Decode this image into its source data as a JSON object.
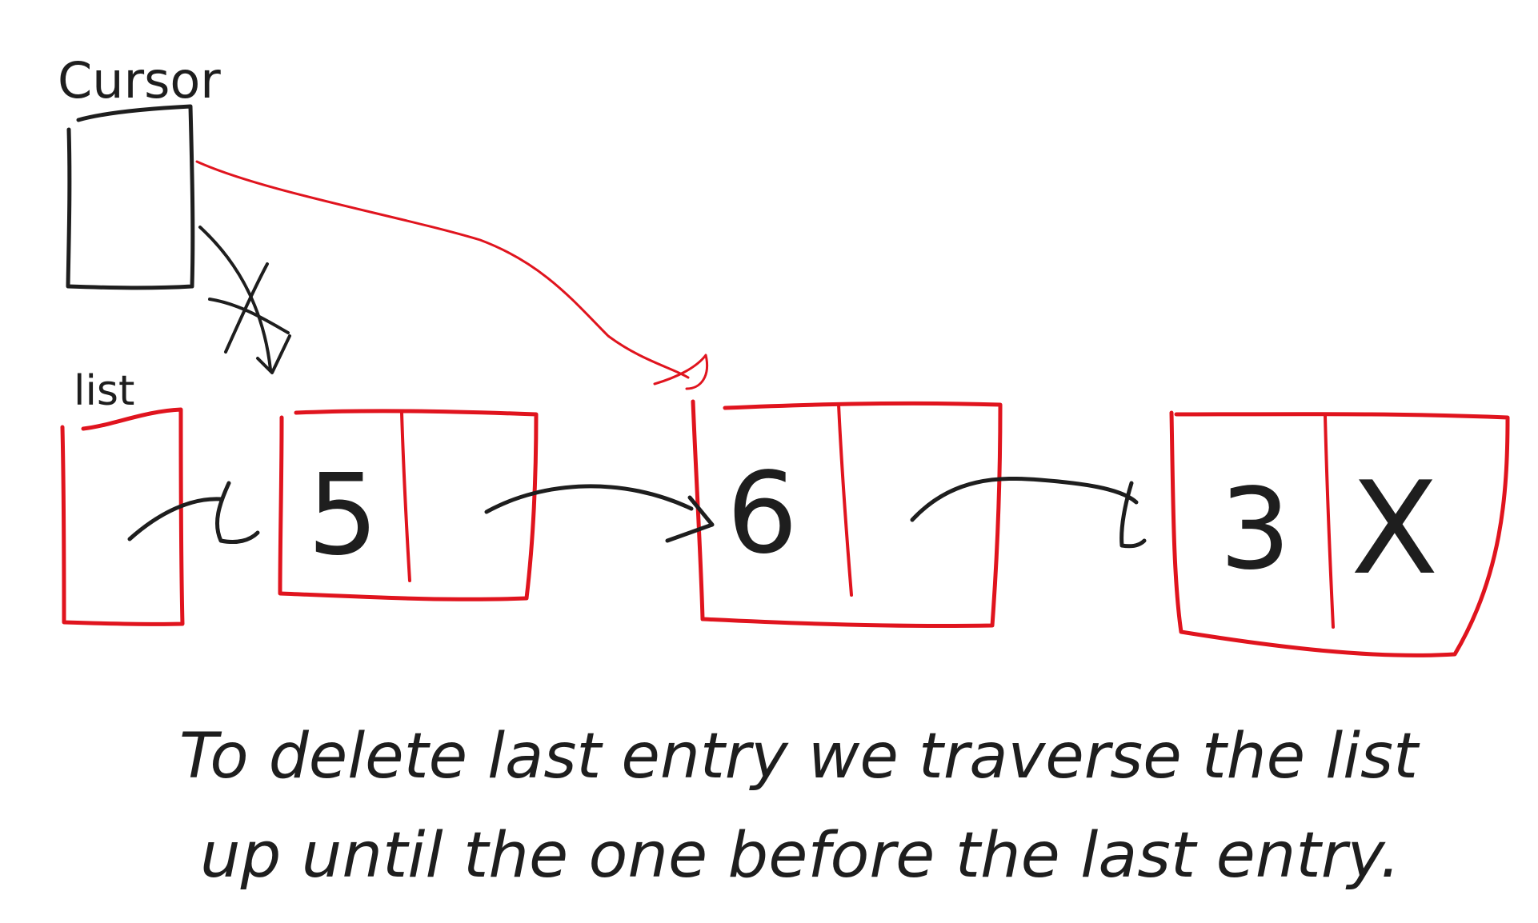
{
  "labels": {
    "cursor": "Cursor",
    "list": "list"
  },
  "nodes": [
    {
      "value": "5",
      "next": ""
    },
    {
      "value": "6",
      "next": ""
    },
    {
      "value": "3",
      "next": "X"
    }
  ],
  "caption": {
    "line1": "To delete last entry we traverse the list",
    "line2": "up until the one before the last entry."
  },
  "colors": {
    "ink": "#1e1e1e",
    "accent": "#e0141e",
    "background": "#ffffff"
  }
}
